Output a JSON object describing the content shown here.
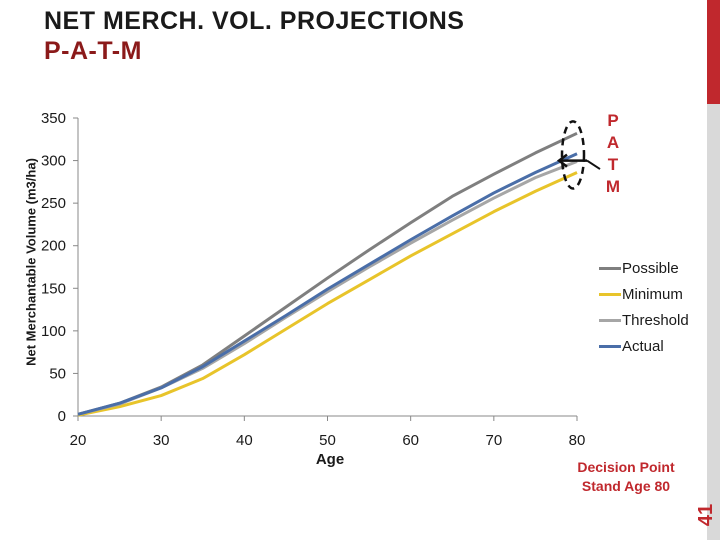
{
  "slide": {
    "title_line1": "NET MERCH. VOL. PROJECTIONS",
    "title_line2": "P-A-T-M",
    "slide_number": "41",
    "patm_letters": [
      "P",
      "A",
      "T",
      "M"
    ],
    "decision_line1": "Decision Point",
    "decision_line2": "Stand Age 80",
    "accent_color": "#c0282d"
  },
  "chart_data": {
    "type": "line",
    "title": "",
    "xlabel": "Age",
    "ylabel": "Net Merchantable Volume (m3/ha)",
    "xlim": [
      20,
      80
    ],
    "ylim": [
      0,
      350
    ],
    "xticks": [
      20,
      30,
      40,
      50,
      60,
      70,
      80
    ],
    "yticks": [
      0,
      50,
      100,
      150,
      200,
      250,
      300,
      350
    ],
    "grid": false,
    "legend_position": "right",
    "x": [
      20,
      25,
      30,
      35,
      40,
      45,
      50,
      55,
      60,
      65,
      70,
      75,
      80
    ],
    "series": [
      {
        "name": "Possible",
        "color": "#7f7f7f",
        "values": [
          2,
          15,
          34,
          60,
          94,
          128,
          162,
          195,
          227,
          258,
          284,
          309,
          332
        ]
      },
      {
        "name": "Minimum",
        "color": "#e8c42a",
        "values": [
          1,
          11,
          24,
          44,
          72,
          102,
          132,
          160,
          188,
          214,
          240,
          264,
          286
        ]
      },
      {
        "name": "Threshold",
        "color": "#a6a6a6",
        "values": [
          2,
          14,
          33,
          56,
          85,
          116,
          146,
          175,
          203,
          230,
          256,
          280,
          299
        ]
      },
      {
        "name": "Actual",
        "color": "#4a6ea8",
        "values": [
          2,
          15,
          33,
          58,
          88,
          118,
          149,
          178,
          207,
          235,
          262,
          286,
          308
        ]
      }
    ]
  }
}
